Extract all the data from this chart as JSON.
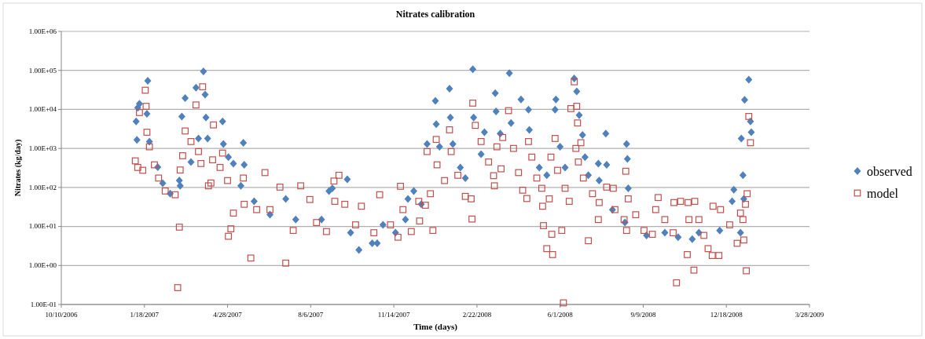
{
  "chart_data": {
    "type": "scatter",
    "title": "Nitrates calibration",
    "xlabel": "Time (days)",
    "ylabel": "Nitrates (kg/day)",
    "log": "y",
    "grid": "y",
    "legend": "right",
    "xlim": [
      "2006-10-10",
      "2009-03-28"
    ],
    "xticks": [
      {
        "value": "2006-10-10",
        "label": "10/10/2006"
      },
      {
        "value": "2007-01-18",
        "label": "1/18/2007"
      },
      {
        "value": "2007-04-28",
        "label": "4/28/2007"
      },
      {
        "value": "2007-08-06",
        "label": "8/6/2007"
      },
      {
        "value": "2007-11-14",
        "label": "11/14/2007"
      },
      {
        "value": "2008-02-22",
        "label": "2/22/2008"
      },
      {
        "value": "2008-06-01",
        "label": "6/1/2008"
      },
      {
        "value": "2008-09-09",
        "label": "9/9/2008"
      },
      {
        "value": "2008-12-18",
        "label": "12/18/2008"
      },
      {
        "value": "2009-03-28",
        "label": "3/28/2009"
      }
    ],
    "ylim": [
      0.1,
      1000000
    ],
    "yticks": [
      {
        "value": 0.1,
        "label": "1.00E-01"
      },
      {
        "value": 1,
        "label": "1.00E+00"
      },
      {
        "value": 10,
        "label": "1.00E+01"
      },
      {
        "value": 100,
        "label": "1.00E+02"
      },
      {
        "value": 1000,
        "label": "1.00E+03"
      },
      {
        "value": 10000,
        "label": "1.00E+04"
      },
      {
        "value": 100000,
        "label": "1.00E+05"
      },
      {
        "value": 1000000,
        "label": "1.00E+06"
      }
    ],
    "series": [
      {
        "name": "observed",
        "color": "#4f81bd",
        "marker": "diamond",
        "x": [
          "2007-01-08",
          "2007-01-09",
          "2007-01-10",
          "2007-01-12",
          "2007-01-21",
          "2007-01-22",
          "2007-01-24",
          "2007-02-03",
          "2007-02-09",
          "2007-02-18",
          "2007-03-01",
          "2007-03-02",
          "2007-03-04",
          "2007-03-08",
          "2007-03-15",
          "2007-03-21",
          "2007-03-24",
          "2007-03-30",
          "2007-04-01",
          "2007-04-02",
          "2007-04-04",
          "2007-04-22",
          "2007-04-23",
          "2007-04-29",
          "2007-05-05",
          "2007-05-14",
          "2007-05-17",
          "2007-05-18",
          "2007-05-30",
          "2007-06-18",
          "2007-07-07",
          "2007-07-19",
          "2007-08-19",
          "2007-08-28",
          "2007-09-01",
          "2007-09-19",
          "2007-09-23",
          "2007-10-03",
          "2007-10-19",
          "2007-10-25",
          "2007-11-01",
          "2007-11-16",
          "2007-11-28",
          "2007-12-01",
          "2007-12-08",
          "2007-12-17",
          "2007-12-24",
          "2008-01-03",
          "2008-01-04",
          "2008-01-08",
          "2008-01-20",
          "2008-01-21",
          "2008-01-24",
          "2008-02-02",
          "2008-02-08",
          "2008-02-17",
          "2008-02-18",
          "2008-02-27",
          "2008-03-02",
          "2008-03-15",
          "2008-03-16",
          "2008-03-21",
          "2008-04-01",
          "2008-04-03",
          "2008-04-15",
          "2008-04-24",
          "2008-04-25",
          "2008-05-07",
          "2008-05-16",
          "2008-05-26",
          "2008-05-27",
          "2008-06-01",
          "2008-06-07",
          "2008-06-18",
          "2008-06-21",
          "2008-06-24",
          "2008-06-28",
          "2008-07-01",
          "2008-07-05",
          "2008-07-17",
          "2008-07-18",
          "2008-07-26",
          "2008-07-27",
          "2008-08-03",
          "2008-08-18",
          "2008-08-20",
          "2008-08-21",
          "2008-08-22",
          "2008-09-13",
          "2008-10-05",
          "2008-10-21",
          "2008-11-07",
          "2008-11-15",
          "2008-12-10",
          "2008-12-25",
          "2008-12-27",
          "2009-01-04",
          "2009-01-05",
          "2009-01-07",
          "2009-01-08",
          "2009-01-09",
          "2009-01-14",
          "2009-01-16",
          "2009-01-17"
        ],
        "values": [
          4900,
          1650,
          11000,
          14000,
          7700,
          54000,
          1500,
          330,
          128,
          69,
          150,
          110,
          6600,
          19500,
          450,
          36000,
          1800,
          94000,
          24000,
          6200,
          1800,
          4900,
          1300,
          600,
          410,
          110,
          1400,
          380,
          44,
          20,
          51,
          15,
          15,
          81,
          95,
          162,
          6.9,
          2.5,
          3.7,
          3.7,
          11,
          6.9,
          15,
          51,
          81,
          37,
          1300,
          16500,
          4200,
          1100,
          34000,
          6200,
          1300,
          325,
          174,
          107000,
          6200,
          710,
          2600,
          26000,
          8900,
          2400,
          85000,
          4500,
          18000,
          9800,
          3000,
          325,
          205,
          9800,
          18000,
          1100,
          325,
          62000,
          29000,
          7100,
          2200,
          600,
          205,
          410,
          150,
          2400,
          380,
          27,
          12.6,
          1300,
          540,
          95,
          5.9,
          6.9,
          5.3,
          4.7,
          6.9,
          7.9,
          44,
          87,
          6.9,
          1800,
          205,
          51,
          17500,
          58000,
          4900,
          2600
        ]
      },
      {
        "name": "model",
        "color": "#c0504d",
        "marker": "square",
        "x": [
          "2007-01-07",
          "2007-01-10",
          "2007-01-12",
          "2007-01-16",
          "2007-01-19",
          "2007-01-20",
          "2007-01-21",
          "2007-01-24",
          "2007-01-30",
          "2007-02-04",
          "2007-02-12",
          "2007-02-24",
          "2007-02-27",
          "2007-03-01",
          "2007-03-02",
          "2007-03-05",
          "2007-03-08",
          "2007-03-15",
          "2007-03-21",
          "2007-03-24",
          "2007-03-27",
          "2007-03-29",
          "2007-04-05",
          "2007-04-08",
          "2007-04-10",
          "2007-04-11",
          "2007-04-19",
          "2007-04-22",
          "2007-04-28",
          "2007-04-29",
          "2007-05-02",
          "2007-05-05",
          "2007-05-17",
          "2007-05-18",
          "2007-05-26",
          "2007-06-02",
          "2007-06-12",
          "2007-06-18",
          "2007-06-30",
          "2007-07-07",
          "2007-07-16",
          "2007-07-25",
          "2007-08-05",
          "2007-08-13",
          "2007-08-25",
          "2007-09-03",
          "2007-09-04",
          "2007-09-09",
          "2007-09-16",
          "2007-09-29",
          "2007-10-06",
          "2007-10-21",
          "2007-10-28",
          "2007-11-10",
          "2007-11-19",
          "2007-11-22",
          "2007-11-25",
          "2007-12-05",
          "2007-12-14",
          "2007-12-15",
          "2007-12-22",
          "2007-12-24",
          "2007-12-28",
          "2007-12-31",
          "2008-01-04",
          "2008-01-05",
          "2008-01-14",
          "2008-01-20",
          "2008-01-22",
          "2008-01-30",
          "2008-02-08",
          "2008-02-15",
          "2008-02-16",
          "2008-02-17",
          "2008-02-20",
          "2008-02-27",
          "2008-03-07",
          "2008-03-13",
          "2008-03-14",
          "2008-03-17",
          "2008-03-22",
          "2008-03-24",
          "2008-03-31",
          "2008-04-06",
          "2008-04-12",
          "2008-04-17",
          "2008-04-22",
          "2008-04-24",
          "2008-04-28",
          "2008-05-04",
          "2008-05-10",
          "2008-05-11",
          "2008-05-12",
          "2008-05-16",
          "2008-05-19",
          "2008-05-21",
          "2008-05-22",
          "2008-05-23",
          "2008-05-26",
          "2008-05-29",
          "2008-06-03",
          "2008-06-05",
          "2008-06-07",
          "2008-06-12",
          "2008-06-14",
          "2008-06-18",
          "2008-06-20",
          "2008-06-21",
          "2008-06-22",
          "2008-06-23",
          "2008-06-26",
          "2008-06-29",
          "2008-07-05",
          "2008-07-10",
          "2008-07-17",
          "2008-07-18",
          "2008-07-27",
          "2008-08-04",
          "2008-08-06",
          "2008-08-17",
          "2008-08-19",
          "2008-08-20",
          "2008-08-22",
          "2008-08-31",
          "2008-09-10",
          "2008-09-20",
          "2008-09-24",
          "2008-09-27",
          "2008-10-05",
          "2008-10-15",
          "2008-10-16",
          "2008-10-19",
          "2008-10-24",
          "2008-11-01",
          "2008-11-02",
          "2008-11-03",
          "2008-11-09",
          "2008-11-10",
          "2008-11-15",
          "2008-11-21",
          "2008-11-26",
          "2008-12-01",
          "2008-12-02",
          "2008-12-09",
          "2008-12-11",
          "2008-12-22",
          "2008-12-31",
          "2009-01-04",
          "2009-01-07",
          "2009-01-08",
          "2009-01-10",
          "2009-01-11",
          "2009-01-12",
          "2009-01-14",
          "2009-01-16"
        ],
        "values": [
          480,
          325,
          8300,
          275,
          31000,
          12000,
          2600,
          1100,
          380,
          174,
          81,
          65,
          0.27,
          9.6,
          280,
          650,
          2800,
          1500,
          13000,
          830,
          410,
          38000,
          110,
          130,
          510,
          4000,
          325,
          760,
          150,
          5.6,
          8.7,
          22,
          174,
          37,
          1.55,
          27,
          240,
          27,
          102,
          1.15,
          7.9,
          110,
          49,
          12.6,
          7.4,
          146,
          44,
          205,
          37,
          11,
          33,
          6.9,
          65,
          11,
          5.3,
          107,
          27,
          7.4,
          44,
          13.8,
          35,
          830,
          69,
          7.9,
          1700,
          380,
          150,
          3000,
          830,
          205,
          59,
          51,
          15.5,
          14500,
          3900,
          1500,
          450,
          200,
          110,
          1100,
          300,
          1900,
          9300,
          1000,
          240,
          85,
          52,
          1500,
          600,
          174,
          95,
          33,
          10.5,
          2.7,
          51,
          600,
          6.3,
          1.9,
          1800,
          275,
          7.9,
          0.11,
          95,
          44,
          10500,
          51000,
          1000,
          12000,
          4500,
          450,
          1400,
          174,
          4.3,
          69,
          15,
          41,
          102,
          95,
          27,
          15,
          260,
          7.9,
          51,
          20,
          7.9,
          6.3,
          27,
          55,
          15,
          6.9,
          41,
          0.36,
          44,
          1.9,
          41,
          15,
          0.76,
          44,
          15,
          5.9,
          2.7,
          1.8,
          33,
          1.8,
          27,
          11,
          3.7,
          22,
          15,
          4.5,
          37,
          0.73,
          69,
          6600,
          1400
        ]
      }
    ]
  }
}
